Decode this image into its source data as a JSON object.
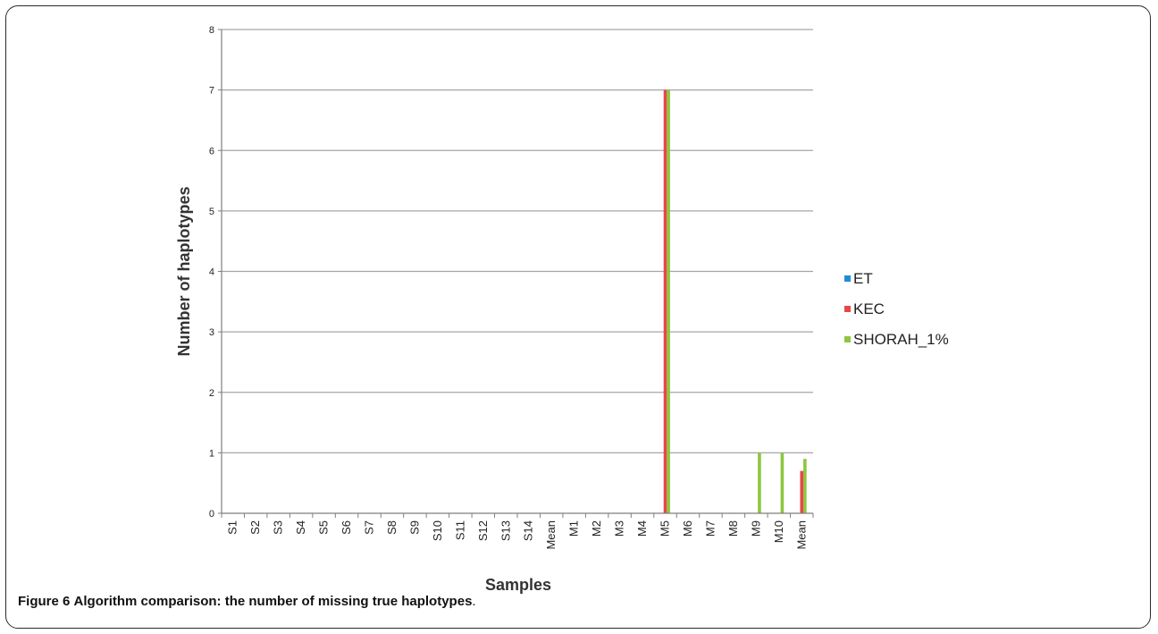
{
  "caption": {
    "label": "Figure 6",
    "text": "Algorithm comparison: the number of missing true haplotypes",
    "end": "."
  },
  "chart_data": {
    "type": "bar",
    "xlabel": "Samples",
    "ylabel": "Number of haplotypes",
    "ylim": [
      0,
      8
    ],
    "yticks": [
      0,
      1,
      2,
      3,
      4,
      5,
      6,
      7,
      8
    ],
    "grid": true,
    "legend_position": "right",
    "categories": [
      "S1",
      "S2",
      "S3",
      "S4",
      "S5",
      "S6",
      "S7",
      "S8",
      "S9",
      "S10",
      "S11",
      "S12",
      "S13",
      "S14",
      "Mean",
      "M1",
      "M2",
      "M3",
      "M4",
      "M5",
      "M6",
      "M7",
      "M8",
      "M9",
      "M10",
      "Mean"
    ],
    "series": [
      {
        "name": "ET",
        "color": "#1f8dd6",
        "values": [
          0,
          0,
          0,
          0,
          0,
          0,
          0,
          0,
          0,
          0,
          0,
          0,
          0,
          0,
          0,
          0,
          0,
          0,
          0,
          0,
          0,
          0,
          0,
          0,
          0,
          0
        ]
      },
      {
        "name": "KEC",
        "color": "#e8474a",
        "values": [
          0,
          0,
          0,
          0,
          0,
          0,
          0,
          0,
          0,
          0,
          0,
          0,
          0,
          0,
          0,
          0,
          0,
          0,
          0,
          7,
          0,
          0,
          0,
          0,
          0,
          0.7
        ]
      },
      {
        "name": "SHORAH_1%",
        "color": "#8dc63f",
        "values": [
          0,
          0,
          0,
          0,
          0,
          0,
          0,
          0,
          0,
          0,
          0,
          0,
          0,
          0,
          0,
          0,
          0,
          0,
          0,
          7,
          0,
          0,
          0,
          1,
          1,
          0.9
        ]
      }
    ]
  }
}
